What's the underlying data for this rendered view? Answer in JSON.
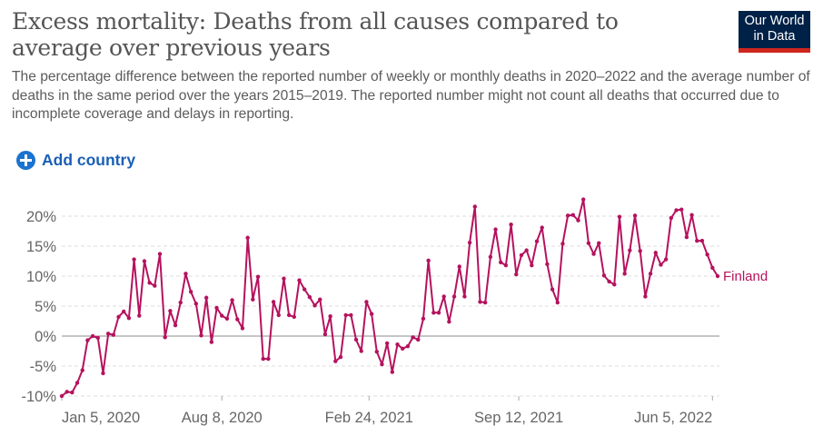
{
  "header": {
    "title": "Excess mortality: Deaths from all causes compared to average over previous years",
    "subtitle": "The percentage difference between the reported number of weekly or monthly deaths in 2020–2022 and the average number of deaths in the same period over the years 2015–2019. The reported number might not count all deaths that occurred due to incomplete coverage and delays in reporting.",
    "logo_line1": "Our World",
    "logo_line2": "in Data"
  },
  "controls": {
    "add_country_label": "Add country",
    "add_icon": "plus-circle-icon"
  },
  "colors": {
    "series": "#b5125e",
    "logo_bg": "#002147",
    "logo_accent": "#ce261e",
    "accent": "#1a73cf"
  },
  "chart_data": {
    "type": "line",
    "title": "Excess mortality: Deaths from all causes compared to average over previous years",
    "xlabel": "",
    "ylabel": "",
    "ylim": [
      -10,
      22
    ],
    "yticks": [
      -10,
      -5,
      0,
      5,
      10,
      15,
      20
    ],
    "ytick_labels": [
      "-10%",
      "-5%",
      "0%",
      "5%",
      "10%",
      "15%",
      "20%"
    ],
    "xtick_labels": [
      "Jan 5, 2020",
      "Aug 8, 2020",
      "Feb 24, 2021",
      "Sep 12, 2021",
      "Jun 5, 2022"
    ],
    "xtick_positions": [
      0,
      31,
      59.5,
      88.5,
      126
    ],
    "grid": true,
    "legend": "inline-right",
    "series": [
      {
        "name": "Finland",
        "values": [
          -10.0,
          -9.3,
          -9.4,
          -7.8,
          -5.7,
          -0.7,
          0.0,
          -0.3,
          -6.2,
          0.4,
          0.2,
          3.2,
          4.1,
          3.0,
          12.8,
          3.4,
          12.5,
          8.9,
          8.4,
          13.7,
          -0.2,
          4.2,
          1.8,
          5.6,
          10.4,
          7.4,
          5.4,
          0.1,
          6.4,
          -1.0,
          4.7,
          3.4,
          2.9,
          6.0,
          2.8,
          1.3,
          16.4,
          6.1,
          9.9,
          -3.8,
          -3.8,
          5.7,
          3.5,
          9.6,
          3.5,
          3.2,
          9.3,
          7.8,
          6.5,
          5.1,
          6.1,
          0.3,
          3.3,
          -4.2,
          -3.5,
          3.5,
          3.5,
          -0.6,
          -2.5,
          5.7,
          3.7,
          -2.6,
          -4.7,
          -1.2,
          -6.0,
          -1.4,
          -2.1,
          -1.7,
          -0.2,
          -0.6,
          2.9,
          12.6,
          3.9,
          3.9,
          6.6,
          2.4,
          6.6,
          11.6,
          6.6,
          15.6,
          21.6,
          5.7,
          5.6,
          13.2,
          17.8,
          12.3,
          11.8,
          18.6,
          10.3,
          13.5,
          14.3,
          11.8,
          15.8,
          18.1,
          12.0,
          7.8,
          5.6,
          15.4,
          20.1,
          20.2,
          19.3,
          22.8,
          15.5,
          13.7,
          15.5,
          10.1,
          9.1,
          8.6,
          19.9,
          10.4,
          14.3,
          20.1,
          14.2,
          6.6,
          10.4,
          13.9,
          11.9,
          12.8,
          19.7,
          21.0,
          21.1,
          16.5,
          20.2,
          15.9,
          15.9,
          13.6,
          11.4,
          10.0
        ]
      }
    ]
  }
}
